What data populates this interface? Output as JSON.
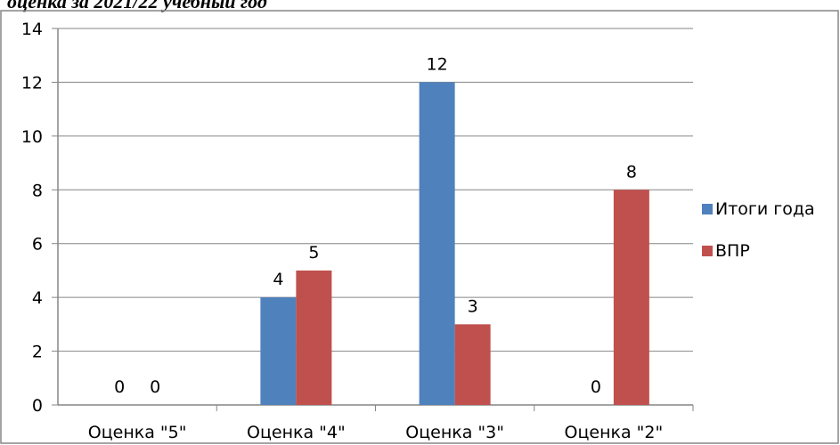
{
  "chart_data": {
    "type": "bar",
    "title": "оценка за 2021/22 учебный год",
    "categories": [
      "Оценка \"5\"",
      "Оценка \"4\"",
      "Оценка \"3\"",
      "Оценка \"2\""
    ],
    "series": [
      {
        "name": "Итоги года",
        "color": "#4f81bd",
        "values": [
          0,
          4,
          12,
          0
        ]
      },
      {
        "name": "ВПР",
        "color": "#c0504d",
        "values": [
          0,
          5,
          3,
          8
        ]
      }
    ],
    "ylim": [
      0,
      14
    ],
    "yticks": [
      0,
      2,
      4,
      6,
      8,
      10,
      12,
      14
    ],
    "grid": true,
    "legend": "right",
    "xlabel": "",
    "ylabel": ""
  }
}
